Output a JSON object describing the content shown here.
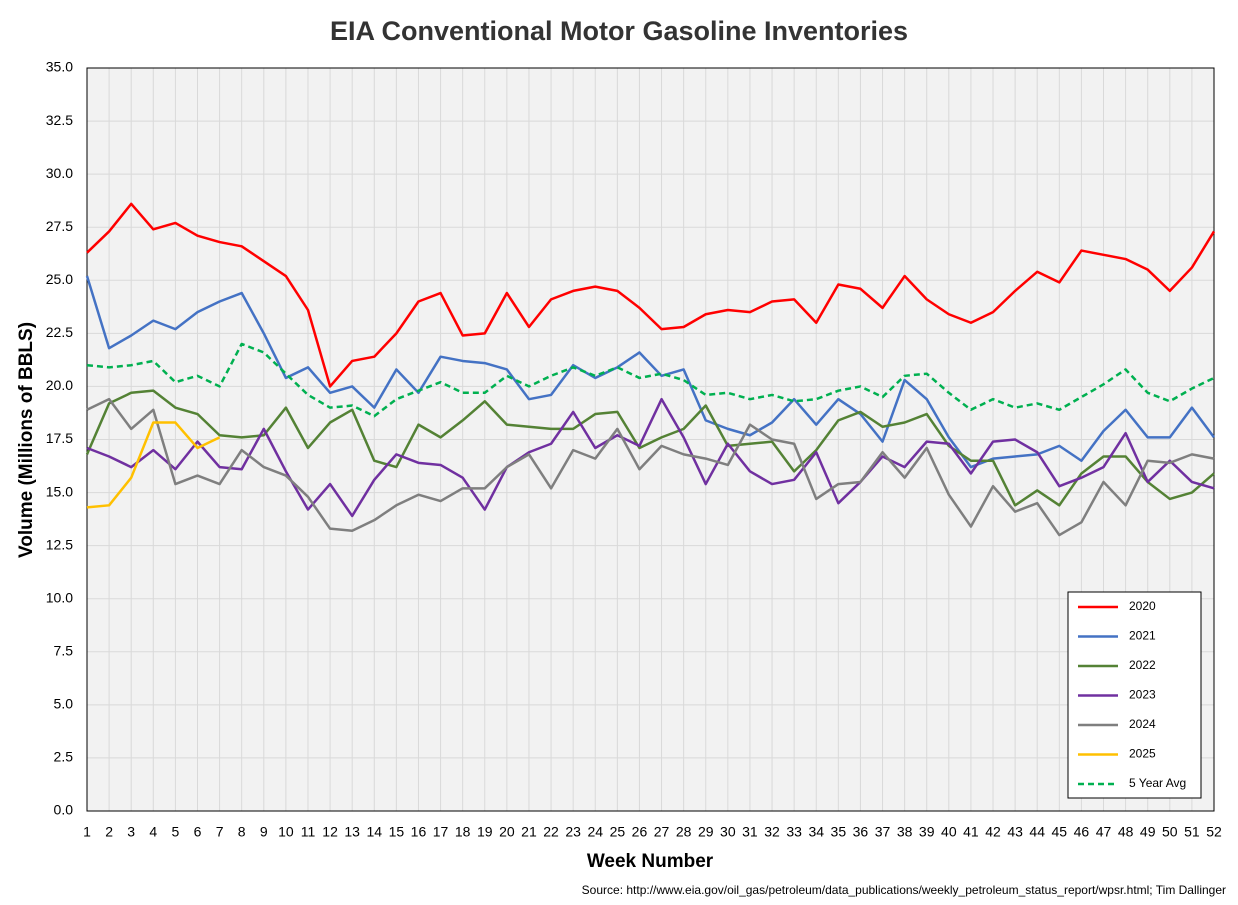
{
  "chart_data": {
    "type": "line",
    "title": "EIA Conventional Motor Gasoline Inventories",
    "x_label": "Week Number",
    "y_label": "Volume (Millions of BBLS)",
    "source": "Source: http://www.eia.gov/oil_gas/petroleum/data_publications/weekly_petroleum_status_report/wpsr.html; Tim Dallinger",
    "categories": [
      "1",
      "2",
      "3",
      "4",
      "5",
      "6",
      "7",
      "8",
      "9",
      "10",
      "11",
      "12",
      "13",
      "14",
      "15",
      "16",
      "17",
      "18",
      "19",
      "20",
      "21",
      "22",
      "23",
      "24",
      "25",
      "26",
      "27",
      "28",
      "29",
      "30",
      "31",
      "32",
      "33",
      "34",
      "35",
      "36",
      "37",
      "38",
      "39",
      "40",
      "41",
      "42",
      "43",
      "44",
      "45",
      "46",
      "47",
      "48",
      "49",
      "50",
      "51",
      "52"
    ],
    "ylim": [
      0,
      35
    ],
    "yticks": [
      {
        "value": 0,
        "label": "0.0"
      },
      {
        "value": 2.5,
        "label": "2.5"
      },
      {
        "value": 5,
        "label": "5.0"
      },
      {
        "value": 7.5,
        "label": "7.5"
      },
      {
        "value": 10,
        "label": "10.0"
      },
      {
        "value": 12.5,
        "label": "12.5"
      },
      {
        "value": 15,
        "label": "15.0"
      },
      {
        "value": 17.5,
        "label": "17.5"
      },
      {
        "value": 20,
        "label": "20.0"
      },
      {
        "value": 22.5,
        "label": "22.5"
      },
      {
        "value": 25,
        "label": "25.0"
      },
      {
        "value": 27.5,
        "label": "27.5"
      },
      {
        "value": 30,
        "label": "30.0"
      },
      {
        "value": 32.5,
        "label": "32.5"
      },
      {
        "value": 35,
        "label": "35.0"
      }
    ],
    "grid": true,
    "legend": "lower right",
    "series": [
      {
        "name": "2020",
        "color": "#ff0000",
        "values": [
          26.3,
          27.3,
          28.6,
          27.4,
          27.7,
          27.1,
          26.8,
          26.6,
          25.9,
          25.2,
          23.6,
          20.0,
          21.2,
          21.4,
          22.5,
          24.0,
          24.4,
          22.4,
          22.5,
          24.4,
          22.8,
          24.1,
          24.5,
          24.7,
          24.5,
          23.7,
          22.7,
          22.8,
          23.4,
          23.6,
          23.5,
          24.0,
          24.1,
          23.0,
          24.8,
          24.6,
          23.7,
          25.2,
          24.1,
          23.4,
          23.0,
          23.5,
          24.5,
          25.4,
          24.9,
          26.4,
          26.2,
          26.0,
          25.5,
          24.5,
          25.6,
          27.3
        ]
      },
      {
        "name": "2021",
        "color": "#4472c4",
        "values": [
          25.2,
          21.8,
          22.4,
          23.1,
          22.7,
          23.5,
          24.0,
          24.4,
          22.5,
          20.4,
          20.9,
          19.7,
          20.0,
          19.0,
          20.8,
          19.7,
          21.4,
          21.2,
          21.1,
          20.8,
          19.4,
          19.6,
          21.0,
          20.4,
          20.9,
          21.6,
          20.5,
          20.8,
          18.4,
          18.0,
          17.7,
          18.3,
          19.4,
          18.2,
          19.4,
          18.7,
          17.4,
          20.3,
          19.4,
          17.6,
          16.2,
          16.6,
          16.7,
          16.8,
          17.2,
          16.5,
          17.9,
          18.9,
          17.6,
          17.6,
          19.0,
          17.6
        ]
      },
      {
        "name": "2022",
        "color": "#548235",
        "values": [
          16.8,
          19.2,
          19.7,
          19.8,
          19.0,
          18.7,
          17.7,
          17.6,
          17.7,
          19.0,
          17.1,
          18.3,
          18.9,
          16.5,
          16.2,
          18.2,
          17.6,
          18.4,
          19.3,
          18.2,
          18.1,
          18.0,
          18.0,
          18.7,
          18.8,
          17.1,
          17.6,
          18.0,
          19.1,
          17.2,
          17.3,
          17.4,
          16.0,
          17.0,
          18.4,
          18.8,
          18.1,
          18.3,
          18.7,
          17.2,
          16.5,
          16.5,
          14.4,
          15.1,
          14.4,
          15.9,
          16.7,
          16.7,
          15.5,
          14.7,
          15.0,
          15.9
        ]
      },
      {
        "name": "2023",
        "color": "#7030a0",
        "values": [
          17.1,
          16.7,
          16.2,
          17.0,
          16.1,
          17.4,
          16.2,
          16.1,
          18.0,
          16.0,
          14.2,
          15.4,
          13.9,
          15.6,
          16.8,
          16.4,
          16.3,
          15.7,
          14.2,
          16.2,
          16.9,
          17.3,
          18.8,
          17.1,
          17.7,
          17.2,
          19.4,
          17.6,
          15.4,
          17.3,
          16.0,
          15.4,
          15.6,
          16.9,
          14.5,
          15.5,
          16.7,
          16.2,
          17.4,
          17.3,
          15.9,
          17.4,
          17.5,
          16.9,
          15.3,
          15.7,
          16.2,
          17.8,
          15.5,
          16.5,
          15.5,
          15.2
        ]
      },
      {
        "name": "2024",
        "color": "#7f7f7f",
        "values": [
          18.9,
          19.4,
          18.0,
          18.9,
          15.4,
          15.8,
          15.4,
          17.0,
          16.2,
          15.8,
          14.8,
          13.3,
          13.2,
          13.7,
          14.4,
          14.9,
          14.6,
          15.2,
          15.2,
          16.2,
          16.8,
          15.2,
          17.0,
          16.6,
          18.0,
          16.1,
          17.2,
          16.8,
          16.6,
          16.3,
          18.2,
          17.5,
          17.3,
          14.7,
          15.4,
          15.5,
          16.9,
          15.7,
          17.1,
          14.9,
          13.4,
          15.3,
          14.1,
          14.5,
          13.0,
          13.6,
          15.5,
          14.4,
          16.5,
          16.4,
          16.8,
          16.6
        ]
      },
      {
        "name": "2025",
        "color": "#ffc000",
        "values": [
          14.3,
          14.4,
          15.7,
          18.3,
          18.3,
          17.1,
          17.6,
          null,
          null,
          null,
          null,
          null,
          null,
          null,
          null,
          null,
          null,
          null,
          null,
          null,
          null,
          null,
          null,
          null,
          null,
          null,
          null,
          null,
          null,
          null,
          null,
          null,
          null,
          null,
          null,
          null,
          null,
          null,
          null,
          null,
          null,
          null,
          null,
          null,
          null,
          null,
          null,
          null,
          null,
          null,
          null,
          null
        ]
      },
      {
        "name": "5 Year Avg",
        "color": "#00b050",
        "dashed": true,
        "values": [
          21.0,
          20.9,
          21.0,
          21.2,
          20.2,
          20.5,
          20.0,
          22.0,
          21.6,
          20.6,
          19.6,
          19.0,
          19.1,
          18.6,
          19.4,
          19.8,
          20.2,
          19.7,
          19.7,
          20.5,
          20.0,
          20.5,
          20.9,
          20.5,
          20.9,
          20.4,
          20.6,
          20.3,
          19.6,
          19.7,
          19.4,
          19.6,
          19.3,
          19.4,
          19.8,
          20.0,
          19.5,
          20.5,
          20.6,
          19.7,
          18.9,
          19.4,
          19.0,
          19.2,
          18.9,
          19.5,
          20.1,
          20.8,
          19.7,
          19.3,
          19.9,
          20.4
        ]
      }
    ]
  }
}
